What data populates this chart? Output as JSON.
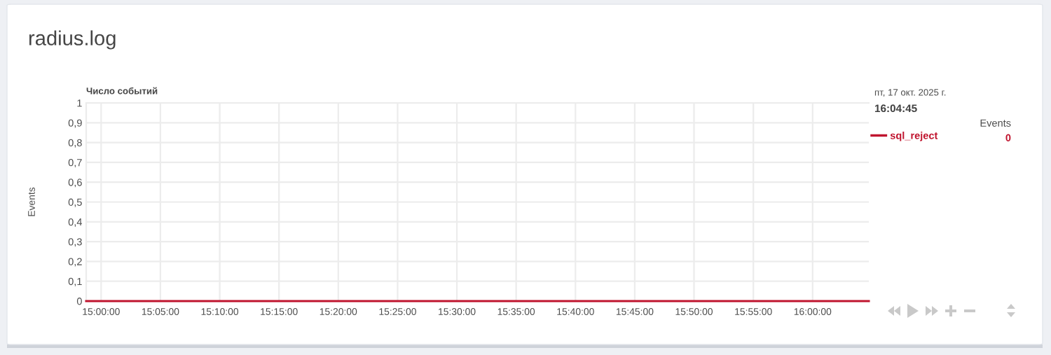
{
  "chart_data": {
    "type": "line",
    "title": "radius.log",
    "subtitle": "Число событий",
    "ylabel": "Events",
    "x": [
      14.979,
      16.079
    ],
    "series": [
      {
        "name": "sql_reject",
        "color": "#c0152f",
        "values": [
          0,
          0
        ]
      }
    ],
    "xlim": [
      14.979,
      16.079
    ],
    "xticks": [
      {
        "value": 15,
        "label": "15:00:00"
      },
      {
        "value": 15.0833,
        "label": "15:05:00"
      },
      {
        "value": 15.1667,
        "label": "15:10:00"
      },
      {
        "value": 15.25,
        "label": "15:15:00"
      },
      {
        "value": 15.3333,
        "label": "15:20:00"
      },
      {
        "value": 15.4167,
        "label": "15:25:00"
      },
      {
        "value": 15.5,
        "label": "15:30:00"
      },
      {
        "value": 15.5833,
        "label": "15:35:00"
      },
      {
        "value": 15.6667,
        "label": "15:40:00"
      },
      {
        "value": 15.75,
        "label": "15:45:00"
      },
      {
        "value": 15.8333,
        "label": "15:50:00"
      },
      {
        "value": 15.9167,
        "label": "15:55:00"
      },
      {
        "value": 16,
        "label": "16:00:00"
      }
    ],
    "ylim": [
      0,
      1
    ],
    "yticks": [
      0,
      {
        "value": 0.1,
        "label": "0,1"
      },
      {
        "value": 0.2,
        "label": "0,2"
      },
      {
        "value": 0.3,
        "label": "0,3"
      },
      {
        "value": 0.4,
        "label": "0,4"
      },
      {
        "value": 0.5,
        "label": "0,5"
      },
      {
        "value": 0.6,
        "label": "0,6"
      },
      {
        "value": 0.7,
        "label": "0,7"
      },
      {
        "value": 0.8,
        "label": "0,8"
      },
      {
        "value": 0.9,
        "label": "0,9"
      },
      1
    ],
    "grid": true,
    "legend": "top right",
    "marker": "none",
    "line_style": "solid",
    "annotations": [
      "пт, 17 окт. 2025 г.",
      "16:04:45",
      "Events",
      "0"
    ]
  }
}
